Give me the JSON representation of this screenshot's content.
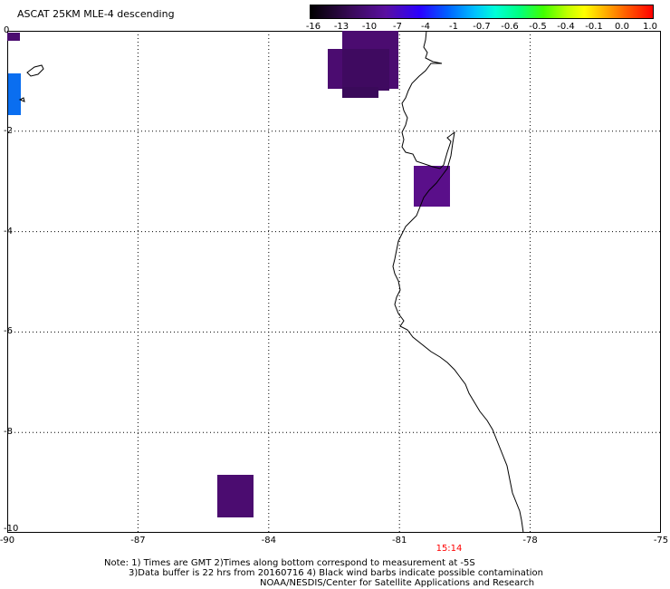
{
  "title": "ASCAT 25KM MLE-4 descending",
  "colorbar": {
    "labels": [
      "-16",
      "-13",
      "-10",
      "-7",
      "-4",
      "-1",
      "-0.7",
      "-0.6",
      "-0.5",
      "-0.4",
      "-0.1",
      "0.0",
      "1.0"
    ]
  },
  "axes": {
    "x_ticks": [
      "-90",
      "-87",
      "-84",
      "-81",
      "-78",
      "-75"
    ],
    "y_ticks": [
      "0",
      "-2",
      "-4",
      "-6",
      "-8",
      "-10"
    ],
    "x_range": [
      -90,
      -75
    ],
    "y_range": [
      -10,
      0
    ],
    "grid": "dotted"
  },
  "time_label": "15:14",
  "notes": {
    "line1": "Note: 1) Times are GMT 2)Times along bottom correspond to measurement at -5S",
    "line2": "3)Data buffer is 22 hrs from 20160716 4) Black wind barbs indicate possible contamination",
    "line3": "NOAA/NESDIS/Center for Satellite Applications and Research"
  },
  "colors": {
    "cell_dark_purple": "#4b0c70",
    "cell_purple": "#5a0f8a",
    "cell_blue": "#0a6ef0",
    "coast": "#000000",
    "time_label": "#ff0000"
  }
}
